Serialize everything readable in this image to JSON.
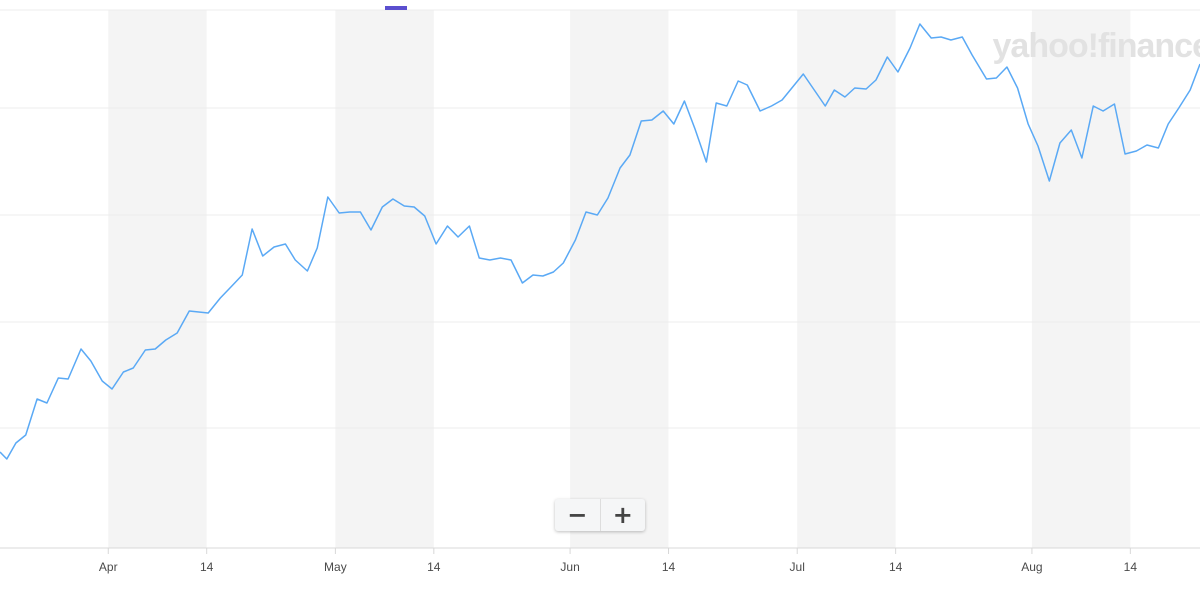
{
  "chart_data": {
    "type": "line",
    "watermark": "yahoo!finance",
    "x": [
      76.7,
      77.6,
      78.8,
      80.1,
      81.6,
      82.9,
      84.4,
      85.7,
      87.4,
      88.7,
      90.2,
      91.5,
      93.0,
      94.3,
      95.9,
      97.2,
      98.6,
      100.1,
      101.7,
      104.2,
      105.8,
      107.2,
      108.7,
      110.0,
      111.4,
      112.9,
      114.4,
      115.7,
      117.3,
      118.6,
      120.0,
      121.5,
      122.9,
      124.3,
      125.7,
      127.2,
      128.6,
      130.1,
      131.4,
      132.8,
      134.3,
      135.8,
      137.2,
      138.7,
      140.0,
      141.4,
      142.8,
      144.2,
      145.7,
      147.1,
      148.4,
      149.8,
      151.1,
      152.7,
      154.1,
      155.6,
      157.0,
      158.6,
      159.9,
      161.4,
      162.8,
      164.3,
      165.7,
      167.1,
      168.5,
      170.0,
      171.3,
      172.7,
      174.2,
      175.4,
      177.1,
      178.6,
      180.0,
      182.8,
      185.7,
      186.9,
      188.3,
      189.6,
      191.1,
      192.4,
      193.9,
      195.3,
      196.9,
      198.2,
      199.7,
      201.0,
      202.3,
      203.8,
      205.1,
      207.0,
      208.3,
      209.7,
      211.1,
      212.5,
      213.8,
      215.3,
      216.7,
      218.2,
      219.6,
      221.1,
      222.4,
      223.9,
      225.3,
      226.8,
      228.2,
      229.7,
      231.0,
      232.4,
      233.9,
      235.2
    ],
    "series": [
      {
        "color": "#5aa9f5",
        "values": [
          96,
          89,
          105,
          113,
          149,
          145,
          170,
          169,
          199,
          187,
          167,
          159,
          176,
          180,
          198,
          199,
          208,
          215,
          237,
          235,
          250,
          261,
          273,
          319,
          292,
          301,
          304,
          288,
          277,
          300,
          351,
          335,
          336,
          336,
          318,
          341,
          349,
          342,
          341,
          332,
          304,
          322,
          311,
          322,
          290,
          288,
          290,
          288,
          265,
          273,
          272,
          276,
          285,
          308,
          336,
          333,
          350,
          380,
          393,
          427,
          428,
          437,
          424,
          447,
          419,
          386,
          445,
          442,
          467,
          463,
          437,
          442,
          448,
          474,
          442,
          458,
          451,
          460,
          459,
          468,
          491,
          476,
          500,
          524,
          510,
          511,
          508,
          511,
          493,
          469,
          470,
          481,
          460,
          424,
          402,
          367,
          405,
          418,
          390,
          442,
          437,
          444,
          394,
          397,
          403,
          400,
          424,
          440,
          458,
          484
        ]
      }
    ],
    "xlim": [
      76.7,
      235.2
    ],
    "ylim": [
      0,
      548
    ],
    "xticks": [
      {
        "value": 91,
        "label": "Apr"
      },
      {
        "value": 104,
        "label": "14"
      },
      {
        "value": 121,
        "label": "May"
      },
      {
        "value": 134,
        "label": "14"
      },
      {
        "value": 152,
        "label": "Jun"
      },
      {
        "value": 165,
        "label": "14"
      },
      {
        "value": 182,
        "label": "Jul"
      },
      {
        "value": 195,
        "label": "14"
      },
      {
        "value": 213,
        "label": "Aug"
      },
      {
        "value": 226,
        "label": "14"
      }
    ]
  },
  "controls": {
    "zoom_out": "−",
    "zoom_in": "+"
  }
}
